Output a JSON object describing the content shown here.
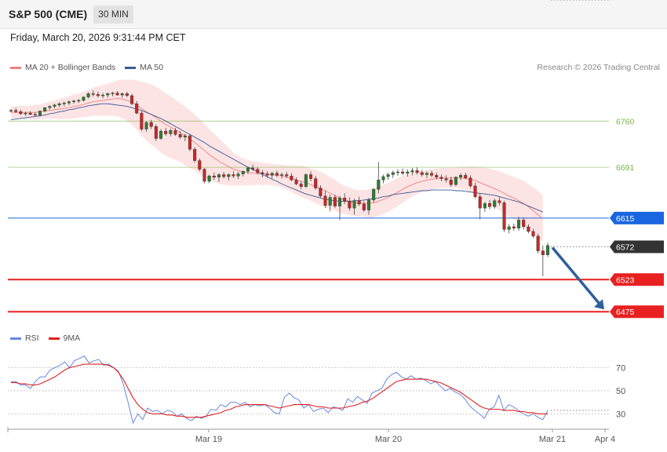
{
  "header": {
    "symbol": "S&P 500 (CME)",
    "timeframe": "30 MIN",
    "datetime": "Friday, March 20, 2026 9:31:44 PM CET"
  },
  "legend": {
    "ma20_label": "MA 20 + Bollinger Bands",
    "ma50_label": "MA 50",
    "ma20_color": "#f08080",
    "ma50_color": "#3b5998",
    "credit": "Research © 2026 Trading Central"
  },
  "rsi_legend": {
    "rsi_label": "RSI",
    "ma9_label": "9MA",
    "rsi_color": "#6688dd",
    "ma9_color": "#e02020"
  },
  "chart_data": [
    {
      "type": "line",
      "title": "",
      "price_range": [
        6460,
        6812
      ],
      "levels": [
        {
          "value": 6760,
          "label": "6760",
          "kind": "resistance",
          "color": "#7ab648"
        },
        {
          "value": 6691,
          "label": "6691",
          "kind": "resistance",
          "color": "#7ab648"
        },
        {
          "value": 6615,
          "label": "6615",
          "kind": "pivot",
          "color": "#1a66e0"
        },
        {
          "value": 6572,
          "label": "6572",
          "kind": "last",
          "color": "#333333"
        },
        {
          "value": 6523,
          "label": "6523",
          "kind": "support",
          "color": "#e82020"
        },
        {
          "value": 6475,
          "label": "6475",
          "kind": "support",
          "color": "#e82020"
        }
      ],
      "forecast_arrow": {
        "from": 6572,
        "to": 6475,
        "color": "#2f5e9e"
      },
      "x_tick_labels": [
        "Mar 19",
        "Mar 20",
        "Mar 21",
        "Apr 4"
      ],
      "candles": [
        [
          6775,
          6778,
          6773,
          6776
        ],
        [
          6776,
          6780,
          6772,
          6774
        ],
        [
          6774,
          6777,
          6769,
          6771
        ],
        [
          6771,
          6774,
          6768,
          6772
        ],
        [
          6772,
          6775,
          6769,
          6770
        ],
        [
          6770,
          6773,
          6767,
          6769
        ],
        [
          6769,
          6776,
          6767,
          6775
        ],
        [
          6775,
          6781,
          6773,
          6780
        ],
        [
          6780,
          6784,
          6777,
          6782
        ],
        [
          6782,
          6786,
          6779,
          6784
        ],
        [
          6784,
          6788,
          6781,
          6786
        ],
        [
          6786,
          6789,
          6782,
          6787
        ],
        [
          6787,
          6791,
          6784,
          6789
        ],
        [
          6789,
          6792,
          6786,
          6790
        ],
        [
          6790,
          6793,
          6787,
          6791
        ],
        [
          6791,
          6797,
          6789,
          6796
        ],
        [
          6796,
          6803,
          6794,
          6801
        ],
        [
          6801,
          6806,
          6797,
          6800
        ],
        [
          6800,
          6804,
          6795,
          6798
        ],
        [
          6798,
          6802,
          6794,
          6799
        ],
        [
          6799,
          6803,
          6795,
          6801
        ],
        [
          6801,
          6804,
          6797,
          6802
        ],
        [
          6802,
          6805,
          6798,
          6799
        ],
        [
          6799,
          6803,
          6795,
          6801
        ],
        [
          6801,
          6804,
          6796,
          6798
        ],
        [
          6798,
          6801,
          6784,
          6786
        ],
        [
          6786,
          6790,
          6770,
          6772
        ],
        [
          6772,
          6775,
          6745,
          6748
        ],
        [
          6748,
          6760,
          6744,
          6758
        ],
        [
          6758,
          6762,
          6748,
          6752
        ],
        [
          6752,
          6755,
          6730,
          6734
        ],
        [
          6734,
          6748,
          6732,
          6745
        ],
        [
          6745,
          6750,
          6738,
          6741
        ],
        [
          6741,
          6749,
          6737,
          6746
        ],
        [
          6746,
          6750,
          6738,
          6740
        ],
        [
          6740,
          6745,
          6733,
          6736
        ],
        [
          6736,
          6741,
          6730,
          6738
        ],
        [
          6738,
          6741,
          6715,
          6718
        ],
        [
          6718,
          6721,
          6698,
          6701
        ],
        [
          6701,
          6704,
          6685,
          6688
        ],
        [
          6688,
          6690,
          6667,
          6670
        ],
        [
          6670,
          6680,
          6667,
          6678
        ],
        [
          6678,
          6683,
          6672,
          6676
        ],
        [
          6676,
          6682,
          6669,
          6680
        ],
        [
          6680,
          6684,
          6674,
          6677
        ],
        [
          6677,
          6682,
          6671,
          6680
        ],
        [
          6680,
          6685,
          6675,
          6678
        ],
        [
          6678,
          6684,
          6673,
          6681
        ],
        [
          6681,
          6686,
          6677,
          6685
        ],
        [
          6685,
          6692,
          6681,
          6690
        ],
        [
          6690,
          6695,
          6685,
          6688
        ],
        [
          6688,
          6691,
          6680,
          6683
        ],
        [
          6683,
          6687,
          6676,
          6681
        ],
        [
          6681,
          6685,
          6675,
          6679
        ],
        [
          6679,
          6684,
          6674,
          6682
        ],
        [
          6682,
          6686,
          6676,
          6679
        ],
        [
          6679,
          6683,
          6674,
          6680
        ],
        [
          6680,
          6684,
          6675,
          6678
        ],
        [
          6678,
          6682,
          6670,
          6672
        ],
        [
          6672,
          6676,
          6664,
          6666
        ],
        [
          6666,
          6670,
          6658,
          6662
        ],
        [
          6662,
          6682,
          6660,
          6680
        ],
        [
          6680,
          6685,
          6670,
          6674
        ],
        [
          6674,
          6678,
          6657,
          6660
        ],
        [
          6660,
          6664,
          6645,
          6648
        ],
        [
          6648,
          6656,
          6630,
          6634
        ],
        [
          6634,
          6650,
          6625,
          6646
        ],
        [
          6646,
          6650,
          6630,
          6633
        ],
        [
          6633,
          6648,
          6612,
          6645
        ],
        [
          6645,
          6652,
          6636,
          6640
        ],
        [
          6640,
          6646,
          6626,
          6630
        ],
        [
          6630,
          6644,
          6620,
          6641
        ],
        [
          6641,
          6647,
          6633,
          6636
        ],
        [
          6636,
          6640,
          6624,
          6627
        ],
        [
          6627,
          6645,
          6620,
          6642
        ],
        [
          6642,
          6660,
          6638,
          6658
        ],
        [
          6658,
          6699,
          6652,
          6672
        ],
        [
          6672,
          6680,
          6667,
          6677
        ],
        [
          6677,
          6683,
          6672,
          6680
        ],
        [
          6680,
          6686,
          6675,
          6683
        ],
        [
          6683,
          6688,
          6678,
          6684
        ],
        [
          6684,
          6689,
          6679,
          6682
        ],
        [
          6682,
          6688,
          6677,
          6684
        ],
        [
          6684,
          6690,
          6679,
          6686
        ],
        [
          6686,
          6691,
          6680,
          6683
        ],
        [
          6683,
          6687,
          6677,
          6680
        ],
        [
          6680,
          6685,
          6675,
          6682
        ],
        [
          6682,
          6686,
          6676,
          6679
        ],
        [
          6679,
          6683,
          6673,
          6676
        ],
        [
          6676,
          6680,
          6670,
          6674
        ],
        [
          6674,
          6679,
          6668,
          6672
        ],
        [
          6672,
          6677,
          6662,
          6665
        ],
        [
          6665,
          6678,
          6663,
          6676
        ],
        [
          6676,
          6682,
          6672,
          6679
        ],
        [
          6679,
          6683,
          6673,
          6675
        ],
        [
          6675,
          6679,
          6660,
          6663
        ],
        [
          6663,
          6668,
          6644,
          6647
        ],
        [
          6647,
          6652,
          6613,
          6630
        ],
        [
          6630,
          6640,
          6624,
          6637
        ],
        [
          6637,
          6642,
          6628,
          6632
        ],
        [
          6632,
          6644,
          6629,
          6641
        ],
        [
          6641,
          6646,
          6634,
          6638
        ],
        [
          6638,
          6641,
          6594,
          6598
        ],
        [
          6598,
          6606,
          6592,
          6602
        ],
        [
          6602,
          6607,
          6596,
          6600
        ],
        [
          6600,
          6617,
          6596,
          6612
        ],
        [
          6612,
          6616,
          6598,
          6602
        ],
        [
          6602,
          6606,
          6592,
          6595
        ],
        [
          6595,
          6599,
          6585,
          6588
        ],
        [
          6588,
          6592,
          6562,
          6566
        ],
        [
          6566,
          6574,
          6528,
          6560
        ],
        [
          6560,
          6578,
          6557,
          6574
        ]
      ],
      "ma20": [
        6773,
        6773,
        6773,
        6773,
        6773,
        6773,
        6774,
        6775,
        6776,
        6777,
        6778,
        6779,
        6780,
        6782,
        6783,
        6785,
        6787,
        6789,
        6790,
        6791,
        6792,
        6793,
        6794,
        6793,
        6791,
        6788,
        6784,
        6779,
        6774,
        6770,
        6765,
        6760,
        6755,
        6751,
        6747,
        6743,
        6738,
        6733,
        6728,
        6722,
        6716,
        6710,
        6705,
        6700,
        6696,
        6692,
        6688,
        6686,
        6684,
        6683,
        6682,
        6682,
        6681,
        6681,
        6680,
        6679,
        6678,
        6676,
        6674,
        6672,
        6670,
        6668,
        6665,
        6662,
        6659,
        6656,
        6652,
        6649,
        6645,
        6642,
        6640,
        6638,
        6637,
        6637,
        6637,
        6638,
        6640,
        6643,
        6646,
        6650,
        6654,
        6658,
        6662,
        6665,
        6668,
        6670,
        6672,
        6673,
        6674,
        6675,
        6675,
        6675,
        6675,
        6675,
        6674,
        6673,
        6671,
        6668,
        6665,
        6662,
        6659,
        6656,
        6652,
        6648,
        6645,
        6641,
        6637,
        6632,
        6626,
        6620,
        6614
      ],
      "ma50": [
        6762,
        6763,
        6764,
        6765,
        6766,
        6767,
        6768,
        6769,
        6771,
        6772,
        6774,
        6775,
        6777,
        6778,
        6780,
        6781,
        6783,
        6784,
        6785,
        6786,
        6786,
        6785,
        6784,
        6783,
        6782,
        6780,
        6778,
        6776,
        6773,
        6770,
        6767,
        6764,
        6760,
        6756,
        6752,
        6748,
        6744,
        6740,
        6736,
        6732,
        6728,
        6723,
        6719,
        6715,
        6711,
        6707,
        6703,
        6699,
        6695,
        6691,
        6688,
        6684,
        6680,
        6677,
        6673,
        6670,
        6666,
        6663,
        6660,
        6657,
        6654,
        6651,
        6649,
        6647,
        6645,
        6643,
        6642,
        6641,
        6640,
        6640,
        6640,
        6641,
        6641,
        6642,
        6643,
        6644,
        6645,
        6647,
        6648,
        6650,
        6651,
        6652,
        6653,
        6654,
        6655,
        6656,
        6656,
        6657,
        6657,
        6657,
        6657,
        6657,
        6656,
        6656,
        6655,
        6654,
        6653,
        6652,
        6651,
        6650,
        6649,
        6647,
        6645,
        6643,
        6641,
        6639,
        6636,
        6633,
        6630,
        6627,
        6624
      ],
      "bb_width": [
        9,
        9,
        10,
        10,
        10,
        11,
        11,
        12,
        13,
        14,
        15,
        16,
        17,
        18,
        18,
        19,
        20,
        21,
        22,
        23,
        24,
        25,
        27,
        29,
        31,
        34,
        37,
        40,
        43,
        45,
        46,
        47,
        47,
        46,
        45,
        44,
        44,
        43,
        42,
        41,
        40,
        38,
        36,
        34,
        31,
        28,
        25,
        22,
        20,
        19,
        18,
        17,
        17,
        16,
        16,
        16,
        17,
        18,
        20,
        22,
        23,
        24,
        24,
        25,
        25,
        25,
        24,
        23,
        22,
        21,
        21,
        20,
        20,
        20,
        21,
        22,
        22,
        22,
        22,
        21,
        21,
        20,
        19,
        18,
        17,
        16,
        15,
        15,
        15,
        15,
        15,
        15,
        15,
        16,
        17,
        19,
        21,
        23,
        25,
        27,
        28,
        29,
        30,
        31,
        32,
        33,
        34,
        34,
        35,
        35,
        35
      ]
    },
    {
      "type": "line",
      "title": "",
      "y_range": [
        18,
        86
      ],
      "y_tick_labels": [
        "70",
        "50",
        "30"
      ],
      "y_ticks": [
        70,
        50,
        30
      ],
      "series": [
        {
          "name": "RSI",
          "values": [
            58,
            58,
            55,
            55,
            52,
            58,
            62,
            62,
            68,
            70,
            72,
            75,
            70,
            76,
            78,
            80,
            74,
            76,
            77,
            72,
            73,
            70,
            67,
            56,
            40,
            22,
            30,
            25,
            35,
            32,
            33,
            30,
            33,
            32,
            28,
            30,
            26,
            24,
            28,
            26,
            28,
            34,
            33,
            38,
            36,
            40,
            40,
            38,
            40,
            36,
            38,
            37,
            38,
            35,
            31,
            30,
            44,
            48,
            44,
            42,
            35,
            38,
            32,
            34,
            35,
            31,
            36,
            35,
            33,
            43,
            40,
            45,
            42,
            39,
            48,
            50,
            52,
            60,
            64,
            66,
            62,
            60,
            63,
            60,
            61,
            59,
            56,
            58,
            54,
            50,
            52,
            49,
            47,
            43,
            37,
            33,
            30,
            26,
            34,
            36,
            46,
            33,
            38,
            36,
            33,
            30,
            28,
            30,
            27,
            25,
            33
          ]
        },
        {
          "name": "9MA",
          "values": [
            57,
            57,
            56,
            56,
            55,
            55,
            56,
            58,
            60,
            62,
            65,
            68,
            70,
            71,
            72,
            73,
            73,
            73,
            73,
            73,
            72,
            70,
            66,
            60,
            52,
            44,
            38,
            34,
            31,
            30,
            30,
            30,
            29,
            29,
            28,
            28,
            27,
            27,
            27,
            27,
            28,
            29,
            30,
            31,
            33,
            34,
            36,
            37,
            38,
            38,
            38,
            38,
            38,
            37,
            36,
            35,
            36,
            37,
            38,
            38,
            38,
            38,
            37,
            36,
            36,
            35,
            35,
            35,
            35,
            36,
            37,
            38,
            40,
            41,
            43,
            46,
            49,
            52,
            55,
            58,
            59,
            60,
            60,
            60,
            60,
            60,
            59,
            58,
            57,
            55,
            53,
            51,
            49,
            46,
            43,
            40,
            37,
            35,
            34,
            34,
            34,
            33,
            33,
            33,
            32,
            32,
            31,
            31,
            30,
            30,
            30
          ]
        }
      ]
    }
  ]
}
